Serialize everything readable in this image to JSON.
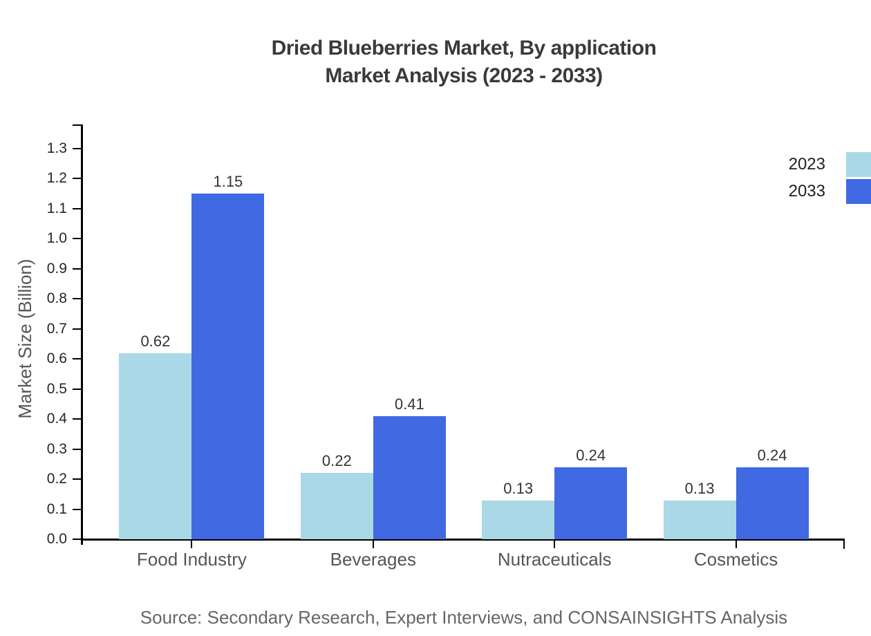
{
  "title": {
    "line1": "Dried Blueberries Market, By application",
    "line2": "Market Analysis (2023 - 2033)"
  },
  "source_note": "Source: Secondary Research, Expert Interviews, and CONSAINSIGHTS Analysis",
  "palette": {
    "series_2023": "#aad8e6",
    "series_2033": "#4169e1",
    "axis": "#000000",
    "title_text": "#3a3a3a",
    "tick_text": "#262626",
    "category_text": "#555555",
    "value_text": "#333333",
    "source_text": "#666666"
  },
  "chart_data": {
    "type": "bar",
    "title": "Dried Blueberries Market, By application Market Analysis (2023 - 2033)",
    "categories": [
      "Food Industry",
      "Beverages",
      "Nutraceuticals",
      "Cosmetics"
    ],
    "series": [
      {
        "name": "2023",
        "color": "#aad8e6",
        "values": [
          0.62,
          0.22,
          0.13,
          0.13
        ]
      },
      {
        "name": "2033",
        "color": "#4169e1",
        "values": [
          1.15,
          0.41,
          0.24,
          0.24
        ]
      }
    ],
    "xlabel": "",
    "ylabel": "Market Size (Billion)",
    "ylim": [
      0.0,
      1.3
    ],
    "yticks": [
      0.0,
      0.1,
      0.2,
      0.3,
      0.4,
      0.5,
      0.6,
      0.7,
      0.8,
      0.9,
      1.0,
      1.1,
      1.2,
      1.3
    ],
    "grid": false,
    "legend_position": "upper-right",
    "value_labels": true
  }
}
